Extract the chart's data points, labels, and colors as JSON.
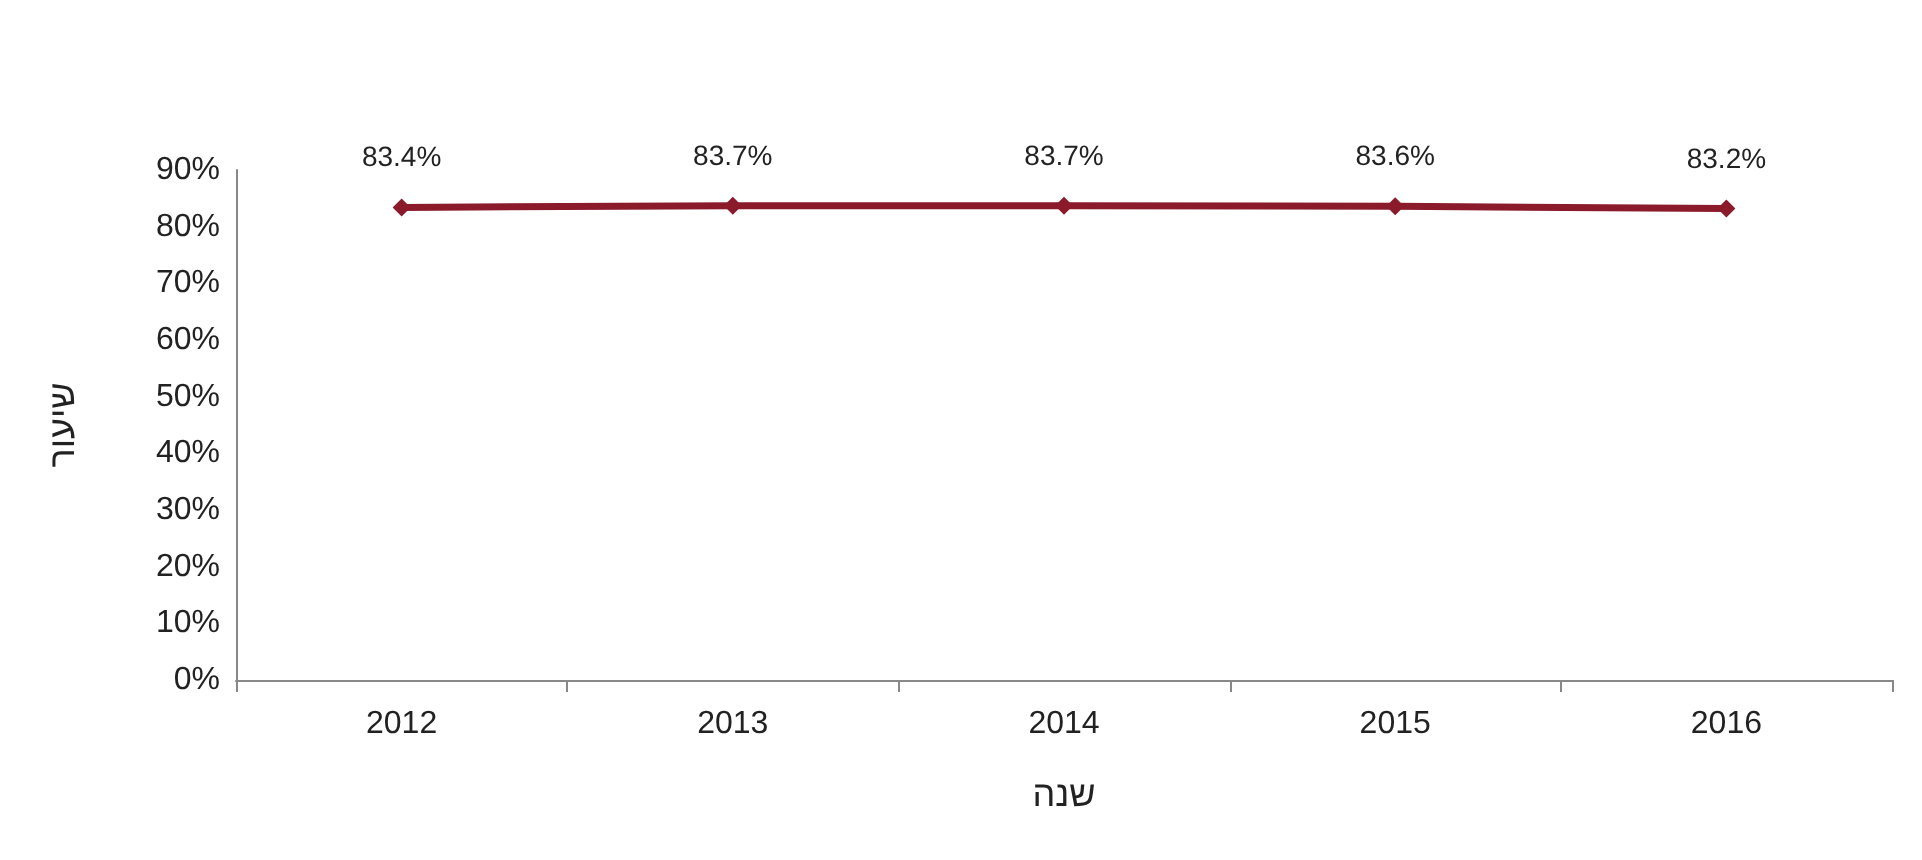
{
  "chart_data": {
    "type": "line",
    "xlabel": "שנה",
    "ylabel": "שיעור",
    "categories": [
      "2012",
      "2013",
      "2014",
      "2015",
      "2016"
    ],
    "series": [
      {
        "color": "#8b1a2b",
        "values": [
          83.4,
          83.7,
          83.7,
          83.6,
          83.2
        ],
        "value_labels": [
          "83.4%",
          "83.7%",
          "83.7%",
          "83.6%",
          "83.2%"
        ]
      }
    ],
    "ylim": [
      0,
      90
    ],
    "yticks": [
      {
        "value": 0,
        "label": "0%"
      },
      {
        "value": 10,
        "label": "10%"
      },
      {
        "value": 20,
        "label": "20%"
      },
      {
        "value": 30,
        "label": "30%"
      },
      {
        "value": 40,
        "label": "40%"
      },
      {
        "value": 50,
        "label": "50%"
      },
      {
        "value": 60,
        "label": "60%"
      },
      {
        "value": 70,
        "label": "70%"
      },
      {
        "value": 80,
        "label": "80%"
      },
      {
        "value": 90,
        "label": "90%"
      }
    ],
    "grid": false,
    "marker": "diamond",
    "line_style": "solid"
  }
}
